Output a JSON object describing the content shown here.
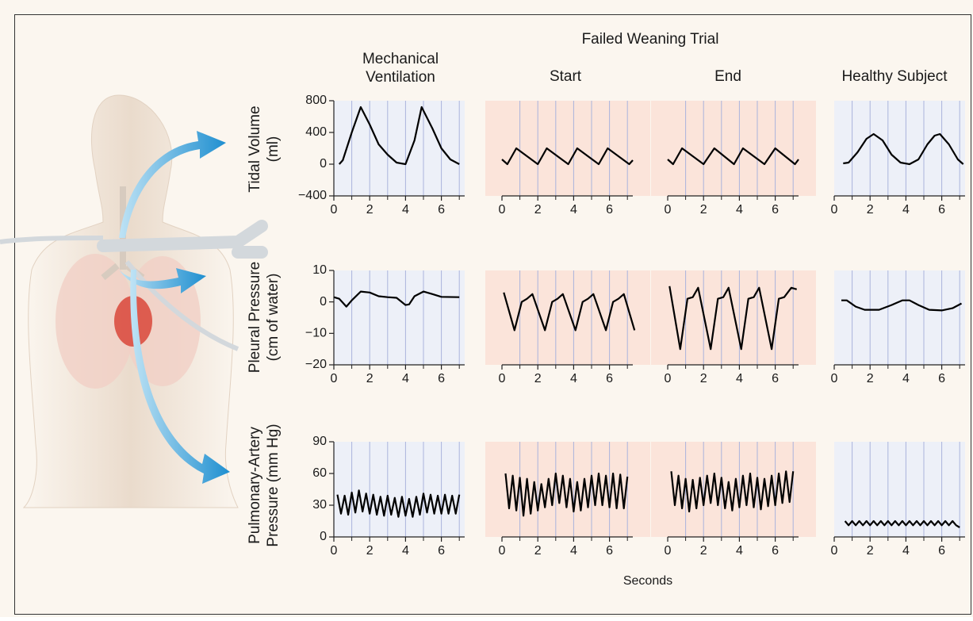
{
  "header": {
    "group_title": "Failed Weaning Trial"
  },
  "columns": [
    [
      "Mechanical",
      "Ventilation"
    ],
    [
      "Start"
    ],
    [
      "End"
    ],
    [
      "Healthy Subject"
    ]
  ],
  "rows": [
    [
      "Tidal Volume",
      "(ml)"
    ],
    [
      "Pleural Pressure",
      "(cm of water)"
    ],
    [
      "Pulmonary-Artery",
      "Pressure (mm Hg)"
    ]
  ],
  "x_label": "Seconds",
  "chart_data": [
    {
      "type": "line",
      "color": "#000000",
      "background": "#edf0f8",
      "grid": true,
      "xlim": [
        0,
        7.3
      ],
      "xticks": [
        0,
        2,
        4,
        6
      ],
      "minor_xticks": [
        1,
        3,
        5,
        7
      ],
      "ylim": [
        -400,
        800
      ],
      "yticks": [
        {
          "value": -400,
          "label": "−400"
        },
        0,
        400,
        800
      ],
      "x": [
        0.3,
        0.5,
        1,
        1.5,
        2,
        2.5,
        3,
        3.5,
        4,
        4.5,
        4.9,
        5.5,
        6,
        6.5,
        7
      ],
      "values": [
        0,
        50,
        400,
        720,
        500,
        250,
        120,
        20,
        0,
        300,
        720,
        450,
        200,
        60,
        0
      ]
    },
    {
      "type": "line",
      "color": "#000000",
      "background": "#fbe4da",
      "grid": true,
      "xlim": [
        0,
        7.3
      ],
      "xticks": [
        0,
        2,
        4,
        6
      ],
      "minor_xticks": [
        1,
        3,
        5,
        7
      ],
      "ylim": [
        -400,
        800
      ],
      "x": [
        0,
        0.3,
        0.8,
        2.0,
        2.5,
        3.7,
        4.2,
        5.4,
        5.9,
        7.1,
        7.3
      ],
      "values": [
        60,
        0,
        200,
        0,
        200,
        0,
        200,
        0,
        200,
        0,
        50
      ]
    },
    {
      "type": "line",
      "color": "#000000",
      "background": "#fbe4da",
      "grid": true,
      "xlim": [
        0,
        7.3
      ],
      "xticks": [
        0,
        2,
        4,
        6
      ],
      "minor_xticks": [
        1,
        3,
        5,
        7
      ],
      "ylim": [
        -400,
        800
      ],
      "x": [
        0,
        0.3,
        0.8,
        2.0,
        2.6,
        3.7,
        4.2,
        5.4,
        6.0,
        7.1,
        7.3
      ],
      "values": [
        60,
        0,
        200,
        0,
        200,
        0,
        200,
        0,
        200,
        0,
        60
      ]
    },
    {
      "type": "line",
      "color": "#000000",
      "background": "#edf0f8",
      "grid": true,
      "xlim": [
        0,
        7.3
      ],
      "xticks": [
        0,
        2,
        4,
        6
      ],
      "minor_xticks": [
        1,
        3,
        5,
        7
      ],
      "ylim": [
        -400,
        800
      ],
      "x": [
        0.5,
        0.8,
        1.3,
        1.8,
        2.2,
        2.7,
        3.2,
        3.7,
        4.2,
        4.7,
        5.2,
        5.6,
        5.9,
        6.4,
        6.9,
        7.2
      ],
      "values": [
        10,
        20,
        150,
        320,
        380,
        300,
        120,
        20,
        0,
        60,
        250,
        360,
        380,
        250,
        60,
        0
      ]
    },
    {
      "type": "line",
      "color": "#000000",
      "background": "#edf0f8",
      "grid": true,
      "xlim": [
        0,
        7.3
      ],
      "xticks": [
        0,
        2,
        4,
        6
      ],
      "minor_xticks": [
        1,
        3,
        5,
        7
      ],
      "ylim": [
        -20,
        10
      ],
      "yticks": [
        {
          "value": -20,
          "label": "−20"
        },
        {
          "value": -10,
          "label": "−10"
        },
        0,
        10
      ],
      "x": [
        0,
        0.3,
        0.7,
        1,
        1.5,
        2,
        2.5,
        3,
        3.5,
        4,
        4.2,
        4.5,
        5,
        5.5,
        6,
        7
      ],
      "values": [
        1.5,
        1,
        -1.5,
        0.5,
        3.3,
        3,
        1.8,
        1.5,
        1.3,
        -1,
        -0.8,
        1.8,
        3.3,
        2.5,
        1.6,
        1.5
      ]
    },
    {
      "type": "line",
      "color": "#000000",
      "background": "#fbe4da",
      "grid": true,
      "xlim": [
        0,
        7.3
      ],
      "xticks": [
        0,
        2,
        4,
        6
      ],
      "minor_xticks": [
        1,
        3,
        5,
        7
      ],
      "ylim": [
        -20,
        10
      ],
      "x": [
        0.1,
        0.7,
        1.1,
        1.4,
        1.7,
        2.4,
        2.8,
        3.1,
        3.4,
        4.1,
        4.5,
        4.8,
        5.1,
        5.8,
        6.2,
        6.5,
        6.8,
        7.4
      ],
      "values": [
        3,
        -9,
        0,
        1,
        2.5,
        -9,
        0,
        1,
        2.5,
        -9,
        0,
        1,
        2.5,
        -9,
        0,
        1,
        2.5,
        -9
      ]
    },
    {
      "type": "line",
      "color": "#000000",
      "background": "#fbe4da",
      "grid": true,
      "xlim": [
        0,
        7.3
      ],
      "xticks": [
        0,
        2,
        4,
        6
      ],
      "minor_xticks": [
        1,
        3,
        5,
        7
      ],
      "ylim": [
        -20,
        10
      ],
      "x": [
        0.1,
        0.7,
        1.1,
        1.4,
        1.7,
        2.4,
        2.8,
        3.1,
        3.4,
        4.1,
        4.5,
        4.8,
        5.1,
        5.8,
        6.2,
        6.5,
        6.9,
        7.2
      ],
      "values": [
        5,
        -15,
        1,
        1.5,
        4.5,
        -15,
        1,
        1.5,
        4.5,
        -15,
        1,
        1.5,
        4.5,
        -15,
        1,
        1.5,
        4.5,
        4
      ]
    },
    {
      "type": "line",
      "color": "#000000",
      "background": "#edf0f8",
      "grid": true,
      "xlim": [
        0,
        7.3
      ],
      "xticks": [
        0,
        2,
        4,
        6
      ],
      "minor_xticks": [
        1,
        3,
        5,
        7
      ],
      "ylim": [
        -20,
        10
      ],
      "x": [
        0.4,
        0.7,
        1.2,
        1.7,
        2.5,
        3.2,
        3.8,
        4.2,
        4.7,
        5.3,
        6,
        6.6,
        7.1
      ],
      "values": [
        0.5,
        0.5,
        -1.5,
        -2.5,
        -2.5,
        -1,
        0.5,
        0.5,
        -1,
        -2.5,
        -2.7,
        -2,
        -0.5
      ]
    },
    {
      "type": "line",
      "color": "#000000",
      "background": "#edf0f8",
      "grid": true,
      "xlim": [
        0,
        7.3
      ],
      "xticks": [
        0,
        2,
        4,
        6
      ],
      "minor_xticks": [
        1,
        3,
        5,
        7
      ],
      "ylim": [
        0,
        90
      ],
      "yticks": [
        0,
        30,
        60,
        90
      ],
      "x": [
        0.2,
        0.4,
        0.6,
        0.8,
        1,
        1.2,
        1.4,
        1.6,
        1.8,
        2,
        2.2,
        2.4,
        2.6,
        2.8,
        3,
        3.2,
        3.4,
        3.6,
        3.8,
        4,
        4.2,
        4.4,
        4.6,
        4.8,
        5,
        5.2,
        5.4,
        5.6,
        5.8,
        6,
        6.2,
        6.4,
        6.6,
        6.8,
        7
      ],
      "values": [
        40,
        22,
        39,
        21,
        42,
        23,
        44,
        24,
        41,
        22,
        40,
        21,
        38,
        20,
        39,
        21,
        37,
        19,
        38,
        20,
        36,
        19,
        38,
        21,
        41,
        23,
        40,
        22,
        39,
        22,
        40,
        22,
        39,
        22,
        40
      ]
    },
    {
      "type": "line",
      "color": "#000000",
      "background": "#fbe4da",
      "grid": true,
      "xlim": [
        0,
        7.3
      ],
      "xticks": [
        0,
        2,
        4,
        6
      ],
      "minor_xticks": [
        1,
        3,
        5,
        7
      ],
      "ylim": [
        0,
        90
      ],
      "x": [
        0.2,
        0.4,
        0.6,
        0.8,
        1,
        1.2,
        1.4,
        1.6,
        1.8,
        2,
        2.2,
        2.4,
        2.6,
        2.8,
        3,
        3.2,
        3.4,
        3.6,
        3.8,
        4,
        4.2,
        4.4,
        4.6,
        4.8,
        5,
        5.2,
        5.4,
        5.6,
        5.8,
        6,
        6.2,
        6.4,
        6.6,
        6.8,
        7
      ],
      "values": [
        60,
        27,
        58,
        25,
        56,
        20,
        55,
        22,
        52,
        25,
        50,
        28,
        55,
        30,
        60,
        32,
        58,
        28,
        55,
        24,
        52,
        25,
        55,
        28,
        58,
        30,
        60,
        30,
        58,
        28,
        60,
        27,
        59,
        27,
        57
      ]
    },
    {
      "type": "line",
      "color": "#000000",
      "background": "#fbe4da",
      "grid": true,
      "xlim": [
        0,
        7.3
      ],
      "xticks": [
        0,
        2,
        4,
        6
      ],
      "minor_xticks": [
        1,
        3,
        5,
        7
      ],
      "ylim": [
        0,
        90
      ],
      "x": [
        0.2,
        0.4,
        0.6,
        0.8,
        1,
        1.2,
        1.4,
        1.6,
        1.8,
        2,
        2.2,
        2.4,
        2.6,
        2.8,
        3,
        3.2,
        3.4,
        3.6,
        3.8,
        4,
        4.2,
        4.4,
        4.6,
        4.8,
        5,
        5.2,
        5.4,
        5.6,
        5.8,
        6,
        6.2,
        6.4,
        6.6,
        6.8,
        7
      ],
      "values": [
        62,
        30,
        58,
        27,
        55,
        24,
        54,
        27,
        56,
        30,
        58,
        32,
        60,
        30,
        56,
        27,
        52,
        25,
        55,
        28,
        58,
        30,
        60,
        28,
        56,
        26,
        55,
        29,
        58,
        30,
        60,
        32,
        62,
        33,
        62
      ]
    },
    {
      "type": "line",
      "color": "#000000",
      "background": "#edf0f8",
      "grid": true,
      "xlim": [
        0,
        7.3
      ],
      "xticks": [
        0,
        2,
        4,
        6
      ],
      "minor_xticks": [
        1,
        3,
        5,
        7
      ],
      "ylim": [
        0,
        90
      ],
      "x": [
        0.6,
        0.8,
        1,
        1.2,
        1.4,
        1.6,
        1.8,
        2,
        2.2,
        2.4,
        2.6,
        2.8,
        3,
        3.2,
        3.4,
        3.6,
        3.8,
        4,
        4.2,
        4.4,
        4.6,
        4.8,
        5,
        5.2,
        5.4,
        5.6,
        5.8,
        6,
        6.2,
        6.4,
        6.6,
        6.8,
        7
      ],
      "values": [
        15,
        11,
        15,
        11,
        15,
        11,
        15,
        11,
        15,
        11,
        15,
        11,
        15,
        11,
        15,
        11,
        15,
        11,
        15,
        11,
        15,
        11,
        15,
        11,
        15,
        11,
        15,
        11,
        15,
        11,
        15,
        11,
        9
      ]
    }
  ]
}
